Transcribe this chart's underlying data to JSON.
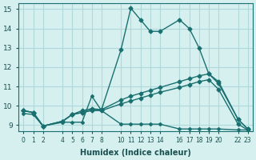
{
  "xlabel": "Humidex (Indice chaleur)",
  "ylabel": "",
  "bg_color": "#d6f0f0",
  "grid_color": "#b0d8d8",
  "line_color": "#1a7070",
  "xlim": [
    -0.5,
    23.5
  ],
  "ylim": [
    8.7,
    15.3
  ],
  "yticks": [
    9,
    10,
    11,
    12,
    13,
    14,
    15
  ],
  "xticks": [
    0,
    1,
    2,
    4,
    5,
    6,
    7,
    8,
    10,
    11,
    12,
    13,
    14,
    16,
    17,
    18,
    19,
    20,
    22,
    23
  ],
  "xtick_labels": [
    "0",
    "1",
    "2",
    "4",
    "5",
    "6",
    "7",
    "8",
    "10",
    "11",
    "12",
    "13",
    "14",
    "16",
    "17",
    "18",
    "19",
    "20",
    "22",
    "23"
  ],
  "line1_x": [
    0,
    1,
    2,
    4,
    5,
    6,
    7,
    8,
    10,
    11,
    12,
    13,
    14,
    16,
    17,
    18,
    19,
    20,
    22,
    23
  ],
  "line1_y": [
    9.75,
    9.65,
    8.95,
    9.2,
    9.55,
    9.75,
    9.85,
    9.8,
    12.9,
    15.05,
    14.45,
    13.85,
    13.85,
    14.45,
    14.0,
    13.0,
    11.65,
    11.25,
    9.3,
    8.8
  ],
  "line2_x": [
    0,
    1,
    2,
    4,
    5,
    6,
    7,
    8,
    10,
    11,
    12,
    13,
    14,
    16,
    17,
    18,
    19,
    20,
    22,
    23
  ],
  "line2_y": [
    9.75,
    9.65,
    8.95,
    9.2,
    9.55,
    9.65,
    9.8,
    9.8,
    10.3,
    10.5,
    10.65,
    10.8,
    10.95,
    11.25,
    11.4,
    11.55,
    11.65,
    11.15,
    9.3,
    8.8
  ],
  "line3_x": [
    0,
    1,
    2,
    4,
    5,
    6,
    7,
    8,
    10,
    11,
    12,
    13,
    14,
    16,
    17,
    18,
    19,
    20,
    22,
    23
  ],
  "line3_y": [
    9.75,
    9.65,
    8.95,
    9.2,
    9.55,
    9.65,
    9.75,
    9.75,
    10.1,
    10.25,
    10.4,
    10.55,
    10.7,
    10.95,
    11.1,
    11.25,
    11.35,
    10.85,
    9.05,
    8.75
  ],
  "line4_x": [
    0,
    1,
    2,
    4,
    5,
    6,
    7,
    8,
    10,
    11,
    12,
    13,
    14,
    16,
    17,
    18,
    19,
    20,
    22,
    23
  ],
  "line4_y": [
    9.6,
    9.55,
    8.95,
    9.15,
    9.15,
    9.15,
    10.5,
    9.75,
    9.05,
    9.05,
    9.05,
    9.05,
    9.05,
    8.8,
    8.8,
    8.8,
    8.8,
    8.8,
    8.75,
    8.75
  ],
  "tick_color": "#1a5050"
}
